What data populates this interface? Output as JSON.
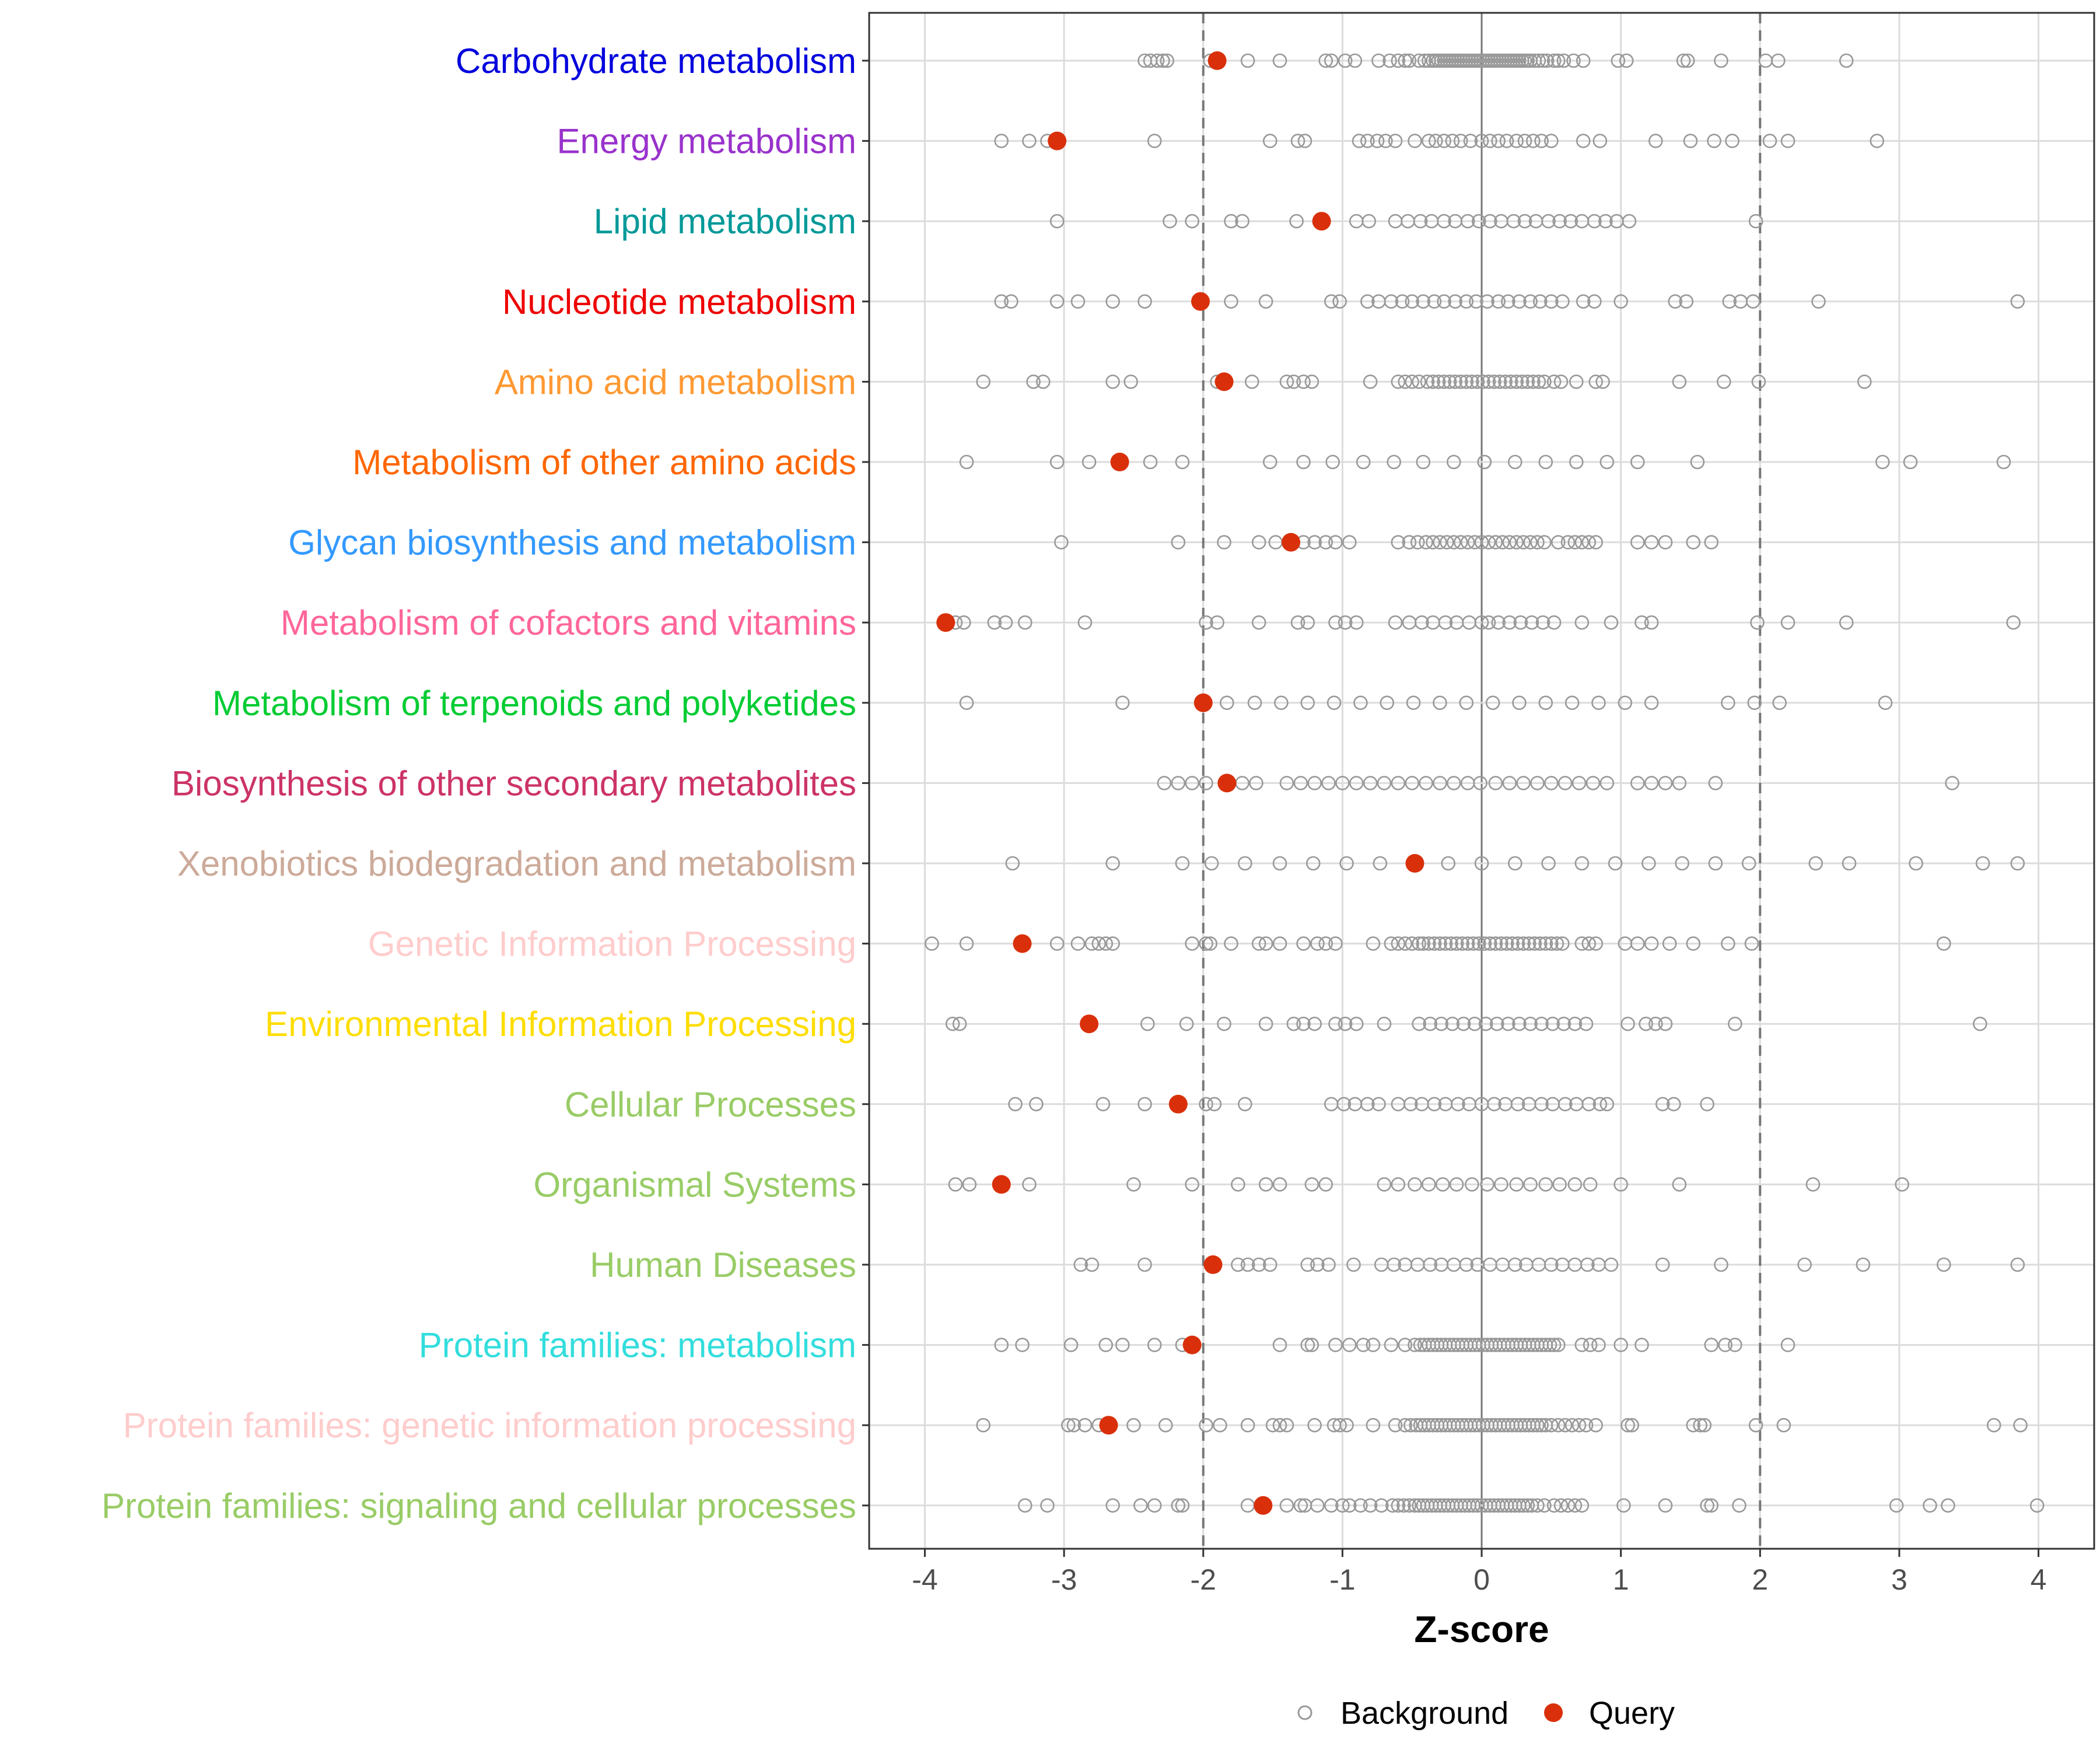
{
  "chart_data": {
    "type": "scatter",
    "title": "",
    "xlabel": "Z-score",
    "ylabel": "",
    "xlim": [
      -4.4,
      4.4
    ],
    "xticks": [
      -4,
      -3,
      -2,
      -1,
      0,
      1,
      2,
      3,
      4
    ],
    "reference_lines": [
      -2,
      2
    ],
    "grid": true,
    "legend": {
      "position": "bottom",
      "entries": [
        {
          "name": "Background",
          "style": "open-circle",
          "color": "#999999"
        },
        {
          "name": "Query",
          "style": "filled-circle",
          "color": "#d9300b"
        }
      ]
    },
    "categories": [
      {
        "name": "Carbohydrate metabolism",
        "color": "#0000dd",
        "query": -1.9,
        "background": [
          -2.42,
          -2.38,
          -2.33,
          -2.29,
          -2.26,
          -1.95,
          -1.68,
          -1.45,
          -1.12,
          -1.08,
          -0.98,
          -0.91,
          -0.74,
          -0.66,
          -0.6,
          -0.55,
          -0.52,
          -0.45,
          -0.41,
          -0.38,
          -0.35,
          -0.33,
          -0.31,
          -0.29,
          -0.27,
          -0.25,
          -0.23,
          -0.21,
          -0.19,
          -0.17,
          -0.15,
          -0.13,
          -0.11,
          -0.09,
          -0.07,
          -0.05,
          -0.03,
          -0.01,
          0.01,
          0.03,
          0.05,
          0.07,
          0.09,
          0.11,
          0.13,
          0.15,
          0.17,
          0.19,
          0.21,
          0.23,
          0.25,
          0.27,
          0.29,
          0.31,
          0.33,
          0.35,
          0.38,
          0.41,
          0.44,
          0.47,
          0.52,
          0.55,
          0.59,
          0.66,
          0.73,
          0.98,
          1.04,
          1.45,
          1.48,
          1.72,
          2.04,
          2.13,
          2.62
        ]
      },
      {
        "name": "Energy metabolism",
        "color": "#9932cc",
        "query": -3.05,
        "background": [
          -3.45,
          -3.25,
          -3.12,
          -2.35,
          -1.52,
          -1.32,
          -1.27,
          -0.88,
          -0.82,
          -0.75,
          -0.69,
          -0.62,
          -0.48,
          -0.38,
          -0.33,
          -0.27,
          -0.21,
          -0.15,
          -0.08,
          0.0,
          0.06,
          0.12,
          0.18,
          0.25,
          0.31,
          0.37,
          0.43,
          0.5,
          0.73,
          0.85,
          1.25,
          1.5,
          1.67,
          1.8,
          2.07,
          2.2,
          2.84
        ]
      },
      {
        "name": "Lipid metabolism",
        "color": "#009999",
        "query": -1.15,
        "background": [
          -3.05,
          -2.24,
          -2.08,
          -1.8,
          -1.72,
          -1.33,
          -0.9,
          -0.81,
          -0.62,
          -0.53,
          -0.44,
          -0.36,
          -0.27,
          -0.19,
          -0.1,
          -0.02,
          0.06,
          0.14,
          0.23,
          0.31,
          0.39,
          0.48,
          0.56,
          0.64,
          0.72,
          0.81,
          0.89,
          0.97,
          1.06,
          1.97
        ]
      },
      {
        "name": "Nucleotide metabolism",
        "color": "#ee0000",
        "query": -2.02,
        "background": [
          -3.45,
          -3.38,
          -3.05,
          -2.9,
          -2.65,
          -2.42,
          -1.8,
          -1.55,
          -1.08,
          -1.02,
          -0.82,
          -0.74,
          -0.65,
          -0.57,
          -0.5,
          -0.42,
          -0.34,
          -0.27,
          -0.19,
          -0.11,
          -0.04,
          0.04,
          0.12,
          0.19,
          0.27,
          0.35,
          0.42,
          0.5,
          0.58,
          0.73,
          0.81,
          1.0,
          1.39,
          1.47,
          1.78,
          1.86,
          1.95,
          2.42,
          3.85
        ]
      },
      {
        "name": "Amino acid metabolism",
        "color": "#ff9933",
        "query": -1.85,
        "background": [
          -3.58,
          -3.22,
          -3.15,
          -2.65,
          -2.52,
          -1.9,
          -1.65,
          -1.4,
          -1.35,
          -1.28,
          -1.22,
          -0.8,
          -0.6,
          -0.55,
          -0.5,
          -0.45,
          -0.39,
          -0.35,
          -0.31,
          -0.27,
          -0.23,
          -0.19,
          -0.15,
          -0.11,
          -0.07,
          -0.03,
          0.01,
          0.05,
          0.09,
          0.13,
          0.17,
          0.21,
          0.25,
          0.29,
          0.33,
          0.37,
          0.41,
          0.45,
          0.52,
          0.57,
          0.68,
          0.82,
          0.87,
          1.42,
          1.74,
          1.99,
          2.75
        ]
      },
      {
        "name": "Metabolism of other amino acids",
        "color": "#ff6600",
        "query": -2.6,
        "background": [
          -3.7,
          -3.05,
          -2.82,
          -2.38,
          -2.15,
          -1.52,
          -1.28,
          -1.07,
          -0.85,
          -0.63,
          -0.42,
          -0.2,
          0.02,
          0.02,
          0.24,
          0.46,
          0.68,
          0.9,
          1.12,
          1.55,
          2.88,
          3.08,
          3.75
        ]
      },
      {
        "name": "Glycan biosynthesis and metabolism",
        "color": "#3399ff",
        "query": -1.37,
        "background": [
          -3.02,
          -2.18,
          -1.85,
          -1.6,
          -1.48,
          -1.38,
          -1.28,
          -1.2,
          -1.12,
          -1.05,
          -0.95,
          -0.6,
          -0.52,
          -0.46,
          -0.4,
          -0.35,
          -0.3,
          -0.25,
          -0.2,
          -0.15,
          -0.1,
          -0.05,
          0.0,
          0.05,
          0.1,
          0.15,
          0.2,
          0.25,
          0.3,
          0.35,
          0.4,
          0.45,
          0.55,
          0.62,
          0.67,
          0.72,
          0.77,
          0.82,
          1.12,
          1.22,
          1.32,
          1.52,
          1.65
        ]
      },
      {
        "name": "Metabolism of cofactors and vitamins",
        "color": "#ff6699",
        "query": -3.85,
        "background": [
          -3.78,
          -3.72,
          -3.5,
          -3.42,
          -3.28,
          -2.85,
          -1.98,
          -1.9,
          -1.6,
          -1.32,
          -1.25,
          -1.05,
          -0.98,
          -0.9,
          -0.62,
          -0.52,
          -0.43,
          -0.35,
          -0.26,
          -0.18,
          -0.09,
          0.0,
          0.05,
          0.12,
          0.2,
          0.28,
          0.36,
          0.44,
          0.52,
          0.72,
          0.93,
          1.15,
          1.22,
          1.98,
          2.2,
          2.62,
          3.82
        ]
      },
      {
        "name": "Metabolism of terpenoids and polyketides",
        "color": "#00cc33",
        "query": -2.0,
        "background": [
          -3.7,
          -2.58,
          -1.83,
          -1.63,
          -1.44,
          -1.25,
          -1.06,
          -0.87,
          -0.68,
          -0.49,
          -0.3,
          -0.11,
          0.08,
          0.27,
          0.46,
          0.65,
          0.84,
          1.03,
          1.22,
          1.77,
          1.96,
          2.14,
          2.9
        ]
      },
      {
        "name": "Biosynthesis of other secondary metabolites",
        "color": "#cc3366",
        "query": -1.83,
        "background": [
          -2.28,
          -2.18,
          -2.08,
          -1.98,
          -1.72,
          -1.62,
          -1.4,
          -1.3,
          -1.2,
          -1.1,
          -1.0,
          -0.9,
          -0.8,
          -0.7,
          -0.6,
          -0.5,
          -0.4,
          -0.3,
          -0.2,
          -0.1,
          -0.01,
          0.1,
          0.2,
          0.3,
          0.4,
          0.5,
          0.6,
          0.7,
          0.8,
          0.9,
          1.12,
          1.22,
          1.32,
          1.42,
          1.68,
          3.38
        ]
      },
      {
        "name": "Xenobiotics biodegradation and metabolism",
        "color": "#ccaa99",
        "query": -0.48,
        "background": [
          -3.37,
          -2.65,
          -2.15,
          -1.94,
          -1.7,
          -1.45,
          -1.21,
          -0.97,
          -0.73,
          -0.24,
          0.0,
          0.24,
          0.48,
          0.72,
          0.96,
          1.2,
          1.44,
          1.68,
          1.92,
          2.4,
          2.64,
          3.12,
          3.6,
          3.85
        ]
      },
      {
        "name": "Genetic Information Processing",
        "color": "#ffcccc",
        "query": -3.3,
        "background": [
          -3.95,
          -3.7,
          -3.05,
          -2.9,
          -2.8,
          -2.75,
          -2.7,
          -2.65,
          -2.08,
          -1.98,
          -1.95,
          -1.8,
          -1.6,
          -1.55,
          -1.45,
          -1.28,
          -1.18,
          -1.12,
          -1.05,
          -0.78,
          -0.65,
          -0.6,
          -0.55,
          -0.5,
          -0.45,
          -0.42,
          -0.38,
          -0.34,
          -0.3,
          -0.26,
          -0.22,
          -0.18,
          -0.14,
          -0.1,
          -0.06,
          -0.02,
          0.02,
          0.06,
          0.1,
          0.14,
          0.18,
          0.22,
          0.26,
          0.3,
          0.34,
          0.38,
          0.42,
          0.46,
          0.5,
          0.54,
          0.58,
          0.72,
          0.77,
          0.82,
          1.03,
          1.12,
          1.22,
          1.35,
          1.52,
          1.77,
          1.94,
          3.32
        ]
      },
      {
        "name": "Environmental Information Processing",
        "color": "#ffdd00",
        "query": -2.82,
        "background": [
          -3.8,
          -3.75,
          -2.4,
          -2.12,
          -1.85,
          -1.55,
          -1.35,
          -1.28,
          -1.2,
          -1.05,
          -0.98,
          -0.9,
          -0.7,
          -0.45,
          -0.37,
          -0.29,
          -0.21,
          -0.13,
          -0.05,
          0.03,
          0.11,
          0.19,
          0.27,
          0.35,
          0.43,
          0.51,
          0.59,
          0.67,
          0.75,
          1.05,
          1.18,
          1.25,
          1.32,
          1.82,
          3.58
        ]
      },
      {
        "name": "Cellular Processes",
        "color": "#99cc66",
        "query": -2.18,
        "background": [
          -3.35,
          -3.2,
          -2.72,
          -2.42,
          -1.98,
          -1.92,
          -1.7,
          -1.08,
          -0.99,
          -0.91,
          -0.82,
          -0.74,
          -0.6,
          -0.51,
          -0.43,
          -0.34,
          -0.26,
          -0.17,
          -0.09,
          0.0,
          0.09,
          0.17,
          0.26,
          0.34,
          0.43,
          0.51,
          0.6,
          0.68,
          0.77,
          0.85,
          0.9,
          1.3,
          1.38,
          1.62
        ]
      },
      {
        "name": "Organismal Systems",
        "color": "#99cc66",
        "query": -3.45,
        "background": [
          -3.78,
          -3.68,
          -3.25,
          -2.5,
          -2.08,
          -1.75,
          -1.55,
          -1.45,
          -1.22,
          -1.12,
          -0.7,
          -0.6,
          -0.48,
          -0.38,
          -0.28,
          -0.18,
          -0.07,
          0.04,
          0.14,
          0.25,
          0.35,
          0.46,
          0.56,
          0.67,
          0.78,
          1.0,
          1.42,
          2.38,
          3.02
        ]
      },
      {
        "name": "Human Diseases",
        "color": "#99cc66",
        "query": -1.93,
        "background": [
          -2.88,
          -2.8,
          -2.42,
          -1.75,
          -1.68,
          -1.6,
          -1.52,
          -1.25,
          -1.18,
          -1.1,
          -0.92,
          -0.72,
          -0.63,
          -0.55,
          -0.46,
          -0.37,
          -0.29,
          -0.2,
          -0.11,
          -0.03,
          0.06,
          0.15,
          0.24,
          0.32,
          0.41,
          0.5,
          0.58,
          0.67,
          0.76,
          0.84,
          0.93,
          1.3,
          1.72,
          2.32,
          2.74,
          3.32,
          3.85
        ]
      },
      {
        "name": "Protein families: metabolism",
        "color": "#33dddd",
        "query": -2.08,
        "background": [
          -3.45,
          -3.3,
          -2.95,
          -2.7,
          -2.58,
          -2.35,
          -2.15,
          -1.45,
          -1.25,
          -1.22,
          -1.05,
          -0.95,
          -0.85,
          -0.78,
          -0.65,
          -0.55,
          -0.48,
          -0.44,
          -0.41,
          -0.38,
          -0.35,
          -0.32,
          -0.29,
          -0.26,
          -0.23,
          -0.2,
          -0.17,
          -0.14,
          -0.11,
          -0.08,
          -0.05,
          -0.02,
          0.01,
          0.04,
          0.07,
          0.1,
          0.13,
          0.16,
          0.19,
          0.22,
          0.25,
          0.28,
          0.31,
          0.34,
          0.37,
          0.4,
          0.43,
          0.46,
          0.49,
          0.52,
          0.55,
          0.72,
          0.78,
          0.84,
          1.0,
          1.15,
          1.65,
          1.75,
          1.82,
          2.2
        ]
      },
      {
        "name": "Protein families: genetic information processing",
        "color": "#ffcccc",
        "query": -2.68,
        "background": [
          -3.58,
          -2.97,
          -2.93,
          -2.85,
          -2.75,
          -2.5,
          -2.27,
          -1.98,
          -1.88,
          -1.68,
          -1.5,
          -1.45,
          -1.4,
          -1.2,
          -1.06,
          -1.02,
          -0.97,
          -0.78,
          -0.62,
          -0.55,
          -0.51,
          -0.47,
          -0.44,
          -0.41,
          -0.38,
          -0.35,
          -0.32,
          -0.29,
          -0.26,
          -0.23,
          -0.2,
          -0.17,
          -0.14,
          -0.11,
          -0.08,
          -0.05,
          -0.02,
          0.01,
          0.04,
          0.07,
          0.1,
          0.13,
          0.16,
          0.19,
          0.22,
          0.25,
          0.28,
          0.31,
          0.34,
          0.37,
          0.4,
          0.43,
          0.46,
          0.5,
          0.55,
          0.6,
          0.65,
          0.7,
          0.75,
          0.82,
          1.05,
          1.08,
          1.52,
          1.57,
          1.6,
          1.97,
          2.17,
          3.68,
          3.87
        ]
      },
      {
        "name": "Protein families: signaling and cellular processes",
        "color": "#99cc66",
        "query": -1.57,
        "background": [
          -3.28,
          -3.12,
          -2.65,
          -2.45,
          -2.35,
          -2.18,
          -2.15,
          -1.68,
          -1.4,
          -1.3,
          -1.27,
          -1.18,
          -1.08,
          -1.0,
          -0.95,
          -0.87,
          -0.8,
          -0.72,
          -0.64,
          -0.6,
          -0.56,
          -0.52,
          -0.48,
          -0.45,
          -0.42,
          -0.39,
          -0.36,
          -0.33,
          -0.3,
          -0.27,
          -0.24,
          -0.21,
          -0.18,
          -0.15,
          -0.12,
          -0.09,
          -0.06,
          -0.03,
          0.0,
          0.03,
          0.06,
          0.09,
          0.12,
          0.15,
          0.18,
          0.21,
          0.24,
          0.27,
          0.3,
          0.33,
          0.36,
          0.4,
          0.45,
          0.52,
          0.57,
          0.62,
          0.67,
          0.72,
          1.02,
          1.32,
          1.62,
          1.65,
          1.85,
          2.98,
          3.22,
          3.35,
          3.99
        ]
      }
    ]
  }
}
